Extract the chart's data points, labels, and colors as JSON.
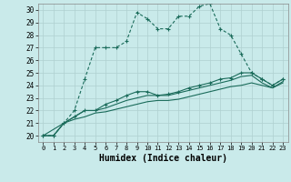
{
  "xlabel": "Humidex (Indice chaleur)",
  "background_color": "#c9eaea",
  "grid_color": "#afd0d0",
  "line_color": "#1a6b5a",
  "xlim": [
    -0.5,
    23.5
  ],
  "ylim": [
    19.5,
    30.5
  ],
  "yticks": [
    20,
    21,
    22,
    23,
    24,
    25,
    26,
    27,
    28,
    29,
    30
  ],
  "xticks": [
    0,
    1,
    2,
    3,
    4,
    5,
    6,
    7,
    8,
    9,
    10,
    11,
    12,
    13,
    14,
    15,
    16,
    17,
    18,
    19,
    20,
    21,
    22,
    23
  ],
  "series1_x": [
    0,
    1,
    2,
    3,
    4,
    5,
    6,
    7,
    8,
    9,
    10,
    11,
    12,
    13,
    14,
    15,
    16,
    17,
    18,
    19,
    20,
    21,
    22,
    23
  ],
  "series1_y": [
    20,
    20,
    21,
    22,
    24.5,
    27,
    27,
    27,
    27.5,
    29.8,
    29.3,
    28.5,
    28.5,
    29.5,
    29.5,
    30.3,
    30.5,
    28.5,
    28,
    26.5,
    25,
    24.5,
    24,
    24.5
  ],
  "series2_x": [
    0,
    1,
    2,
    3,
    4,
    5,
    6,
    7,
    8,
    9,
    10,
    11,
    12,
    13,
    14,
    15,
    16,
    17,
    18,
    19,
    20,
    21,
    22,
    23
  ],
  "series2_y": [
    20,
    20,
    21,
    21.5,
    22,
    22,
    22.5,
    22.8,
    23.2,
    23.5,
    23.5,
    23.2,
    23.3,
    23.5,
    23.8,
    24.0,
    24.2,
    24.5,
    24.6,
    25.0,
    25.0,
    24.5,
    24.0,
    24.5
  ],
  "series3_x": [
    0,
    1,
    2,
    3,
    4,
    5,
    6,
    7,
    8,
    9,
    10,
    11,
    12,
    13,
    14,
    15,
    16,
    17,
    18,
    19,
    20,
    21,
    22,
    23
  ],
  "series3_y": [
    20,
    20,
    21,
    21.5,
    22,
    22,
    22.2,
    22.5,
    22.8,
    23.0,
    23.2,
    23.2,
    23.2,
    23.4,
    23.6,
    23.8,
    24.0,
    24.2,
    24.4,
    24.7,
    24.8,
    24.2,
    23.8,
    24.3
  ],
  "series4_x": [
    0,
    2,
    3,
    4,
    5,
    6,
    7,
    8,
    9,
    10,
    11,
    12,
    13,
    14,
    15,
    16,
    17,
    18,
    19,
    20,
    21,
    22,
    23
  ],
  "series4_y": [
    20,
    21,
    21.3,
    21.5,
    21.8,
    21.9,
    22.1,
    22.3,
    22.5,
    22.7,
    22.8,
    22.8,
    22.9,
    23.1,
    23.3,
    23.5,
    23.7,
    23.9,
    24.0,
    24.2,
    24.0,
    23.8,
    24.2
  ]
}
